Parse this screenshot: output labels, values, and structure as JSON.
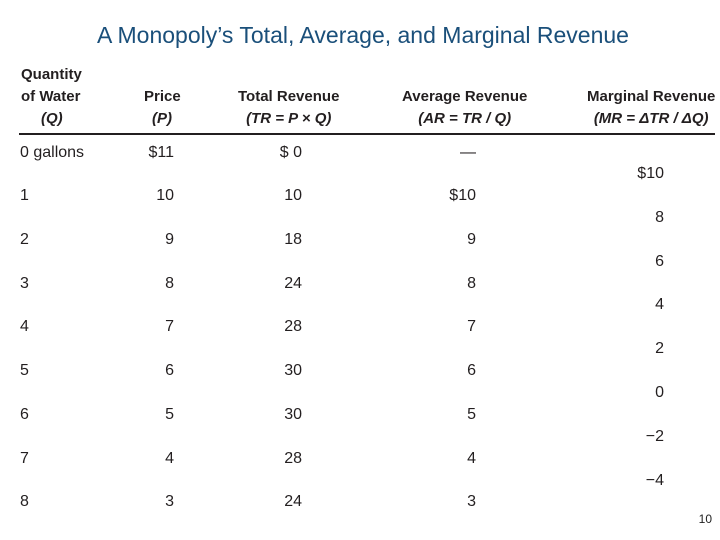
{
  "title": "A Monopoly’s Total, Average, and Marginal Revenue",
  "headers": {
    "quantity": [
      "Quantity",
      "of Water",
      "(Q)"
    ],
    "price": [
      "Price",
      "(P)"
    ],
    "total_revenue": [
      "Total Revenue",
      "(TR = P × Q)"
    ],
    "average_revenue": [
      "Average Revenue",
      "(AR = TR / Q)"
    ],
    "marginal_revenue": [
      "Marginal Revenue",
      "(MR = ΔTR / ΔQ)"
    ]
  },
  "rows": [
    {
      "quantity": "0 gallons",
      "price": "$11",
      "total_revenue": "$ 0",
      "average_revenue": "—"
    },
    {
      "quantity": "1",
      "price": "10",
      "total_revenue": "10",
      "average_revenue": "$10"
    },
    {
      "quantity": "2",
      "price": "9",
      "total_revenue": "18",
      "average_revenue": "9"
    },
    {
      "quantity": "3",
      "price": "8",
      "total_revenue": "24",
      "average_revenue": "8"
    },
    {
      "quantity": "4",
      "price": "7",
      "total_revenue": "28",
      "average_revenue": "7"
    },
    {
      "quantity": "5",
      "price": "6",
      "total_revenue": "30",
      "average_revenue": "6"
    },
    {
      "quantity": "6",
      "price": "5",
      "total_revenue": "30",
      "average_revenue": "5"
    },
    {
      "quantity": "7",
      "price": "4",
      "total_revenue": "28",
      "average_revenue": "4"
    },
    {
      "quantity": "8",
      "price": "3",
      "total_revenue": "24",
      "average_revenue": "3"
    }
  ],
  "marginal_revenue": [
    "$10",
    "8",
    "6",
    "4",
    "2",
    "0",
    "−2",
    "−4"
  ],
  "page_number": "10"
}
